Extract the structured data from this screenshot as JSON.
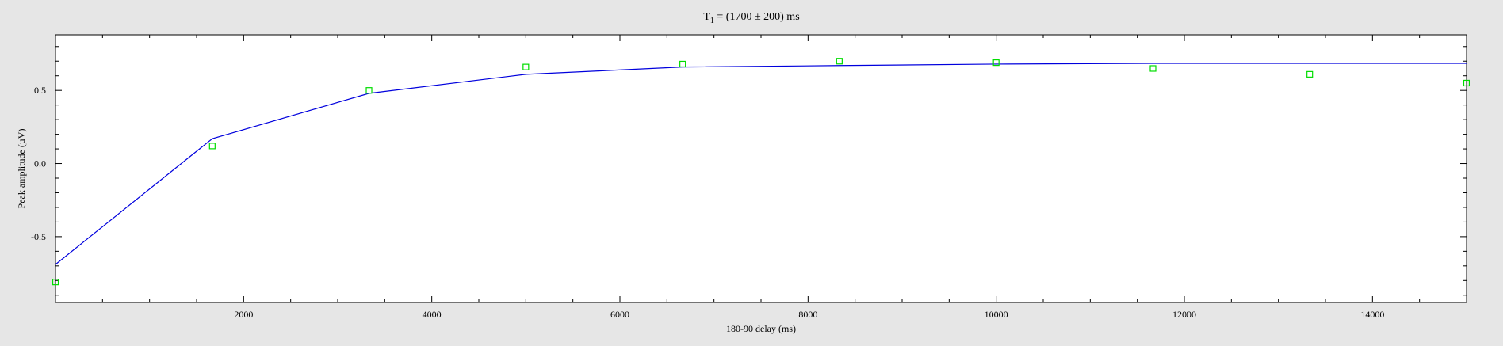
{
  "chart_data": {
    "type": "scatter",
    "title": {
      "prefix": "T",
      "subscript": "1",
      "suffix": " = (1700 ± 200) ms"
    },
    "xlabel": "180-90 delay (ms)",
    "ylabel": "Peak amplitude (µV)",
    "xlim": [
      0,
      15000
    ],
    "ylim": [
      -0.95,
      0.88
    ],
    "x_ticks": [
      2000,
      4000,
      6000,
      8000,
      10000,
      12000,
      14000
    ],
    "x_tick_labels": [
      "2000",
      "4000",
      "6000",
      "8000",
      "10000",
      "12000",
      "14000"
    ],
    "y_ticks": [
      -0.5,
      0.0,
      0.5
    ],
    "y_tick_labels": [
      "-0.5",
      "0.0",
      "0.5"
    ],
    "grid": false,
    "series": [
      {
        "kind": "points",
        "color": "#00dd00",
        "x": [
          0,
          1667,
          3333,
          5000,
          6667,
          8333,
          10000,
          11667,
          13333,
          15000
        ],
        "y": [
          -0.81,
          0.12,
          0.5,
          0.66,
          0.68,
          0.7,
          0.69,
          0.65,
          0.61,
          0.55
        ]
      },
      {
        "kind": "fit-line",
        "color": "#0000dd",
        "x": [
          0,
          1667,
          3333,
          5000,
          6667,
          8333,
          10000,
          11667,
          13333,
          15000
        ],
        "y": [
          -0.69,
          0.17,
          0.48,
          0.61,
          0.66,
          0.67,
          0.68,
          0.685,
          0.685,
          0.685
        ]
      }
    ]
  }
}
